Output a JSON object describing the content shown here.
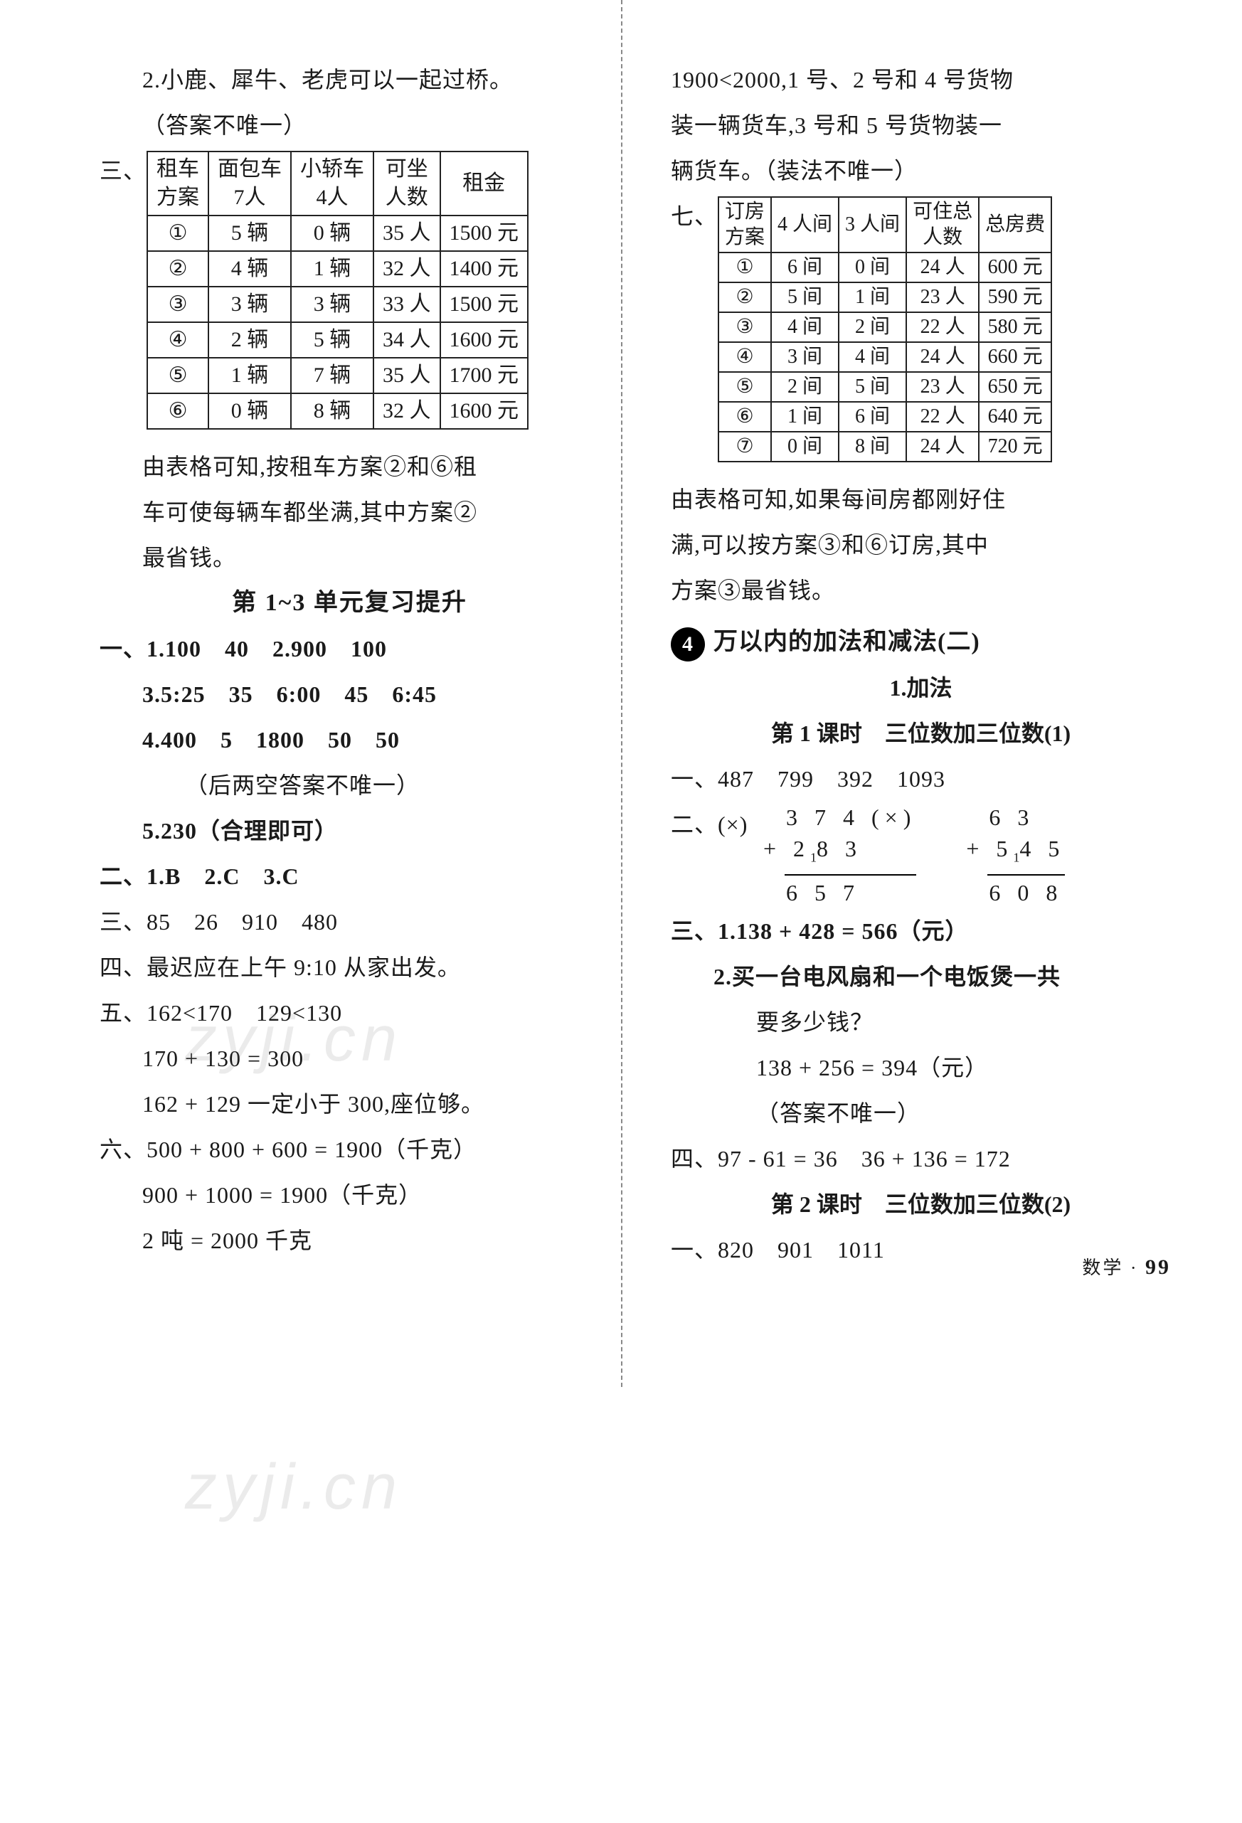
{
  "left": {
    "item2": "2.小鹿、犀牛、老虎可以一起过桥。",
    "item2_note": "（答案不唯一）",
    "san_label": "三、",
    "table1": {
      "headers": [
        [
          "租车",
          "方案"
        ],
        [
          "面包车",
          "7人"
        ],
        [
          "小轿车",
          "4人"
        ],
        [
          "可坐",
          "人数"
        ],
        "租金"
      ],
      "rows": [
        [
          "①",
          "5 辆",
          "0 辆",
          "35 人",
          "1500 元"
        ],
        [
          "②",
          "4 辆",
          "1 辆",
          "32 人",
          "1400 元"
        ],
        [
          "③",
          "3 辆",
          "3 辆",
          "33 人",
          "1500 元"
        ],
        [
          "④",
          "2 辆",
          "5 辆",
          "34 人",
          "1600 元"
        ],
        [
          "⑤",
          "1 辆",
          "7 辆",
          "35 人",
          "1700 元"
        ],
        [
          "⑥",
          "0 辆",
          "8 辆",
          "32 人",
          "1600 元"
        ]
      ]
    },
    "table1_after1": "由表格可知,按租车方案②和⑥租",
    "table1_after2": "车可使每辆车都坐满,其中方案②",
    "table1_after3": "最省钱。",
    "review_heading": "第 1~3 单元复习提升",
    "yi_label": "一、",
    "yi_1": "1.100　40　2.900　100",
    "yi_3": "3.5:25　35　6:00　45　6:45",
    "yi_4": "4.400　5　1800　50　50",
    "yi_note": "（后两空答案不唯一）",
    "yi_5": "5.230（合理即可）",
    "er": "二、1.B　2.C　3.C",
    "san2": "三、85　26　910　480",
    "si": "四、最迟应在上午 9:10 从家出发。",
    "wu1": "五、162<170　129<130",
    "wu2": "170 + 130 = 300",
    "wu3": "162 + 129 一定小于 300,座位够。",
    "liu1": "六、500 + 800 + 600 = 1900（千克）",
    "liu2": "900 + 1000 = 1900（千克）",
    "liu3": "2 吨 = 2000 千克"
  },
  "right": {
    "cont1": "1900<2000,1 号、2 号和 4 号货物",
    "cont2": "装一辆货车,3 号和 5 号货物装一",
    "cont3": "辆货车。（装法不唯一）",
    "qi_label": "七、",
    "table2": {
      "headers": [
        [
          "订房",
          "方案"
        ],
        "4 人间",
        "3 人间",
        [
          "可住总",
          "人数"
        ],
        "总房费"
      ],
      "rows": [
        [
          "①",
          "6 间",
          "0 间",
          "24 人",
          "600 元"
        ],
        [
          "②",
          "5 间",
          "1 间",
          "23 人",
          "590 元"
        ],
        [
          "③",
          "4 间",
          "2 间",
          "22 人",
          "580 元"
        ],
        [
          "④",
          "3 间",
          "4 间",
          "24 人",
          "660 元"
        ],
        [
          "⑤",
          "2 间",
          "5 间",
          "23 人",
          "650 元"
        ],
        [
          "⑥",
          "1 间",
          "6 间",
          "22 人",
          "640 元"
        ],
        [
          "⑦",
          "0 间",
          "8 间",
          "24 人",
          "720 元"
        ]
      ]
    },
    "table2_after1": "由表格可知,如果每间房都刚好住",
    "table2_after2": "满,可以按方案③和⑥订房,其中",
    "table2_after3": "方案③最省钱。",
    "unit_num": "4",
    "unit_title": "万以内的加法和减法(二)",
    "sub1": "1.加法",
    "lesson1": "第 1 课时　三位数加三位数(1)",
    "r_yi": "一、487　799　392　1093",
    "r_er_prefix": "二、(×)",
    "calc1": {
      "a": "3 7 4",
      "b": "2₁8 3",
      "s": "6 5 7",
      "mark": "(×)"
    },
    "calc2": {
      "a": "6 3",
      "b": "5₁4 5",
      "s": "6 0 8"
    },
    "r_san1": "三、1.138 + 428 = 566（元）",
    "r_san2a": "2.买一台电风扇和一个电饭煲一共",
    "r_san2b": "要多少钱？",
    "r_san2c": "138 + 256 = 394（元）",
    "r_san2d": "（答案不唯一）",
    "r_si": "四、97 - 61 = 36　36 + 136 = 172",
    "lesson2": "第 2 课时　三位数加三位数(2)",
    "r2_yi": "一、820　901　1011"
  },
  "footer": {
    "subject": "数学",
    "page": "99"
  },
  "watermark": "zyji.cn"
}
